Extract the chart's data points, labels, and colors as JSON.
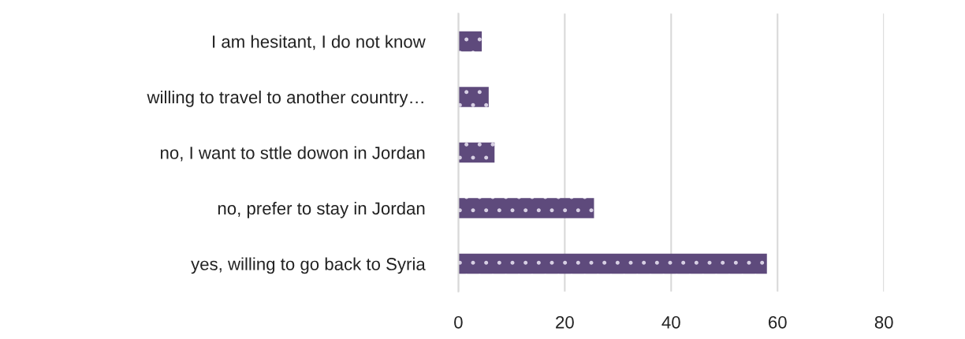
{
  "chart_data": {
    "type": "bar",
    "orientation": "horizontal",
    "categories": [
      "I am hesitant, I do not know",
      "willing to travel to another country…",
      "no, I want to sttle dowon in Jordan",
      "no, prefer to stay in Jordan",
      "yes, willing to go back to Syria"
    ],
    "values": [
      4.4,
      5.7,
      6.8,
      25.5,
      58.0
    ],
    "color": "#5e4a7c",
    "xlim": [
      0,
      80
    ],
    "xticks": [
      0,
      20,
      40,
      60,
      80
    ],
    "grid": "x",
    "legend": false
  }
}
